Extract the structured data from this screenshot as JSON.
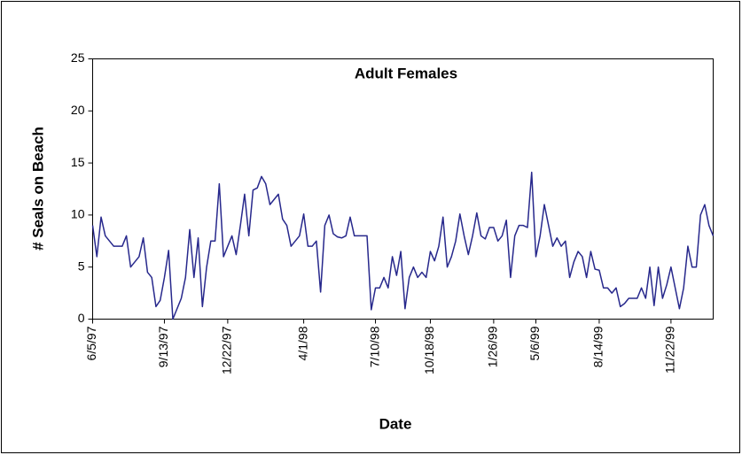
{
  "chart_data": {
    "type": "line",
    "title": "Adult Females",
    "x_label": "Date",
    "y_label": "# Seals on Beach",
    "ylim": [
      0,
      25
    ],
    "yticks": [
      0,
      5,
      10,
      15,
      20,
      25
    ],
    "grid": false,
    "categories": [
      "6/5/97",
      null,
      null,
      null,
      null,
      null,
      null,
      null,
      null,
      null,
      null,
      null,
      null,
      null,
      null,
      null,
      null,
      "9/13/97",
      null,
      null,
      null,
      null,
      null,
      null,
      null,
      null,
      null,
      null,
      null,
      null,
      null,
      null,
      "12/22/97",
      null,
      null,
      null,
      null,
      null,
      null,
      null,
      null,
      null,
      null,
      null,
      null,
      null,
      null,
      null,
      null,
      null,
      "4/1/98",
      null,
      null,
      null,
      null,
      null,
      null,
      null,
      null,
      null,
      null,
      null,
      null,
      null,
      null,
      null,
      null,
      "7/10/98",
      null,
      null,
      null,
      null,
      null,
      null,
      null,
      null,
      null,
      null,
      null,
      null,
      "10/18/98",
      null,
      null,
      null,
      null,
      null,
      null,
      null,
      null,
      null,
      null,
      null,
      null,
      null,
      null,
      "1/26/99",
      null,
      null,
      null,
      null,
      null,
      null,
      null,
      null,
      null,
      "5/6/99",
      null,
      null,
      null,
      null,
      null,
      null,
      null,
      null,
      null,
      null,
      null,
      null,
      null,
      null,
      "8/14/99",
      null,
      null,
      null,
      null,
      null,
      null,
      null,
      null,
      null,
      null,
      null,
      null,
      null,
      null,
      null,
      null,
      "11/22/99",
      null,
      null,
      null,
      null,
      null,
      null,
      null,
      null,
      null,
      null
    ],
    "series": [
      {
        "color": "#27288c",
        "values": [
          9,
          6,
          9.8,
          8,
          7.5,
          7,
          7,
          7,
          8,
          5,
          5.5,
          6,
          7.8,
          4.5,
          4,
          1.2,
          1.8,
          4,
          6.6,
          0,
          1,
          2,
          4,
          8.6,
          4,
          7.8,
          1.2,
          5,
          7.5,
          7.5,
          13,
          6,
          7,
          8,
          6.2,
          9,
          12,
          8,
          12.4,
          12.6,
          13.7,
          13,
          11,
          11.5,
          12,
          9.6,
          9,
          7,
          7.5,
          8,
          10.1,
          7,
          7,
          7.5,
          2.6,
          9,
          10,
          8.2,
          7.9,
          7.8,
          8,
          9.8,
          8,
          8,
          8,
          8,
          0.9,
          3,
          3,
          4,
          3,
          6,
          4.2,
          6.5,
          1,
          4,
          5,
          4,
          4.5,
          4,
          6.5,
          5.6,
          7,
          9.8,
          5,
          6,
          7.5,
          10.1,
          8,
          6.2,
          8,
          10.2,
          8,
          7.7,
          8.8,
          8.8,
          7.5,
          8,
          9.5,
          4,
          8,
          9,
          9,
          8.8,
          14.1,
          6,
          8,
          11,
          9,
          7,
          7.8,
          7,
          7.5,
          4,
          5.5,
          6.5,
          6,
          4,
          6.5,
          4.8,
          4.7,
          3,
          3,
          2.5,
          3,
          1.2,
          1.5,
          2,
          2,
          2,
          3,
          2,
          5,
          1.3,
          5,
          2,
          3.3,
          5,
          3,
          1,
          3,
          7,
          5,
          5,
          10,
          11,
          9,
          8
        ]
      }
    ]
  }
}
